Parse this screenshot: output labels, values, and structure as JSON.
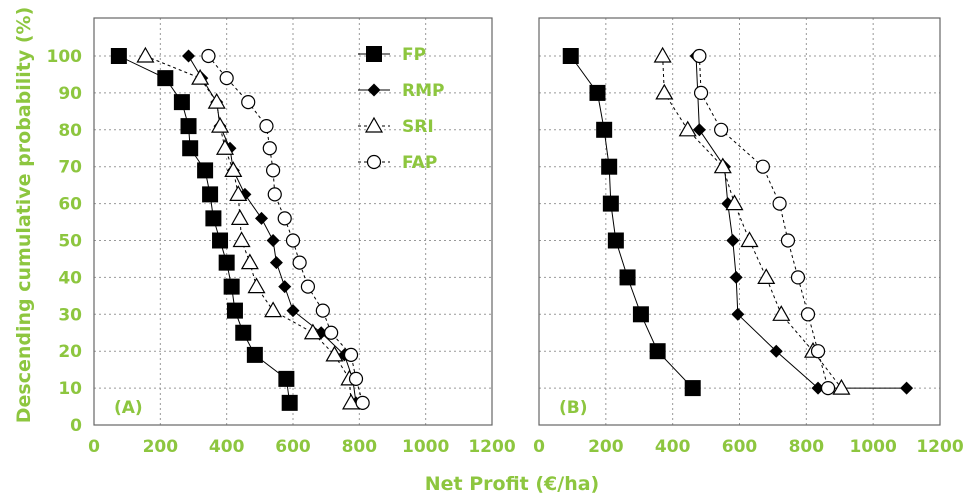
{
  "chart_data": [
    {
      "type": "line",
      "panel_label": "(A)",
      "xlabel": "Net Profit (€/ha)",
      "ylabel": "Descending cumulative probability (%)",
      "xlim": [
        0,
        1200
      ],
      "ylim": [
        0,
        100
      ],
      "xticks": [
        "0",
        "200",
        "400",
        "600",
        "800",
        "1000",
        "1200"
      ],
      "yticks": [
        "0",
        "10",
        "20",
        "30",
        "40",
        "50",
        "60",
        "70",
        "80",
        "90",
        "100"
      ],
      "grid": true,
      "legend_position": "top-right",
      "series": [
        {
          "name": "FP",
          "marker": "filled-square",
          "line": "solid",
          "x": [
            75,
            215,
            265,
            285,
            290,
            335,
            350,
            360,
            380,
            400,
            415,
            425,
            450,
            485,
            580,
            590
          ],
          "y": [
            100,
            94,
            87.5,
            81,
            75,
            69,
            62.5,
            56,
            50,
            44,
            37.5,
            31,
            25,
            19,
            12.5,
            6
          ]
        },
        {
          "name": "RMP",
          "marker": "filled-diamond",
          "line": "solid",
          "x": [
            285,
            325,
            370,
            380,
            410,
            420,
            455,
            505,
            540,
            550,
            575,
            600,
            685,
            755,
            780,
            790
          ],
          "y": [
            100,
            94,
            87.5,
            81,
            75,
            69,
            62.5,
            56,
            50,
            44,
            37.5,
            31,
            25,
            19,
            12.5,
            6
          ]
        },
        {
          "name": "SRI",
          "marker": "open-triangle",
          "line": "dashed",
          "x": [
            155,
            320,
            370,
            380,
            395,
            420,
            435,
            440,
            445,
            470,
            490,
            540,
            660,
            725,
            770,
            775
          ],
          "y": [
            100,
            94,
            87.5,
            81,
            75,
            69,
            62.5,
            56,
            50,
            44,
            37.5,
            31,
            25,
            19,
            12.5,
            6
          ]
        },
        {
          "name": "FAP",
          "marker": "open-circle",
          "line": "dashed",
          "x": [
            345,
            400,
            465,
            520,
            530,
            540,
            545,
            575,
            600,
            620,
            645,
            690,
            715,
            775,
            790,
            810
          ],
          "y": [
            100,
            94,
            87.5,
            81,
            75,
            69,
            62.5,
            56,
            50,
            44,
            37.5,
            31,
            25,
            19,
            12.5,
            6
          ]
        }
      ]
    },
    {
      "type": "line",
      "panel_label": "(B)",
      "xlim": [
        0,
        1200
      ],
      "ylim": [
        0,
        100
      ],
      "xticks": [
        "0",
        "200",
        "400",
        "600",
        "800",
        "1000",
        "1200"
      ],
      "grid": true,
      "series": [
        {
          "name": "FP",
          "marker": "filled-square",
          "line": "solid",
          "x": [
            95,
            175,
            195,
            210,
            215,
            230,
            265,
            305,
            355,
            460
          ],
          "y": [
            100,
            90,
            80,
            70,
            60,
            50,
            40,
            30,
            20,
            10
          ]
        },
        {
          "name": "RMP",
          "marker": "filled-diamond",
          "line": "solid",
          "x": [
            470,
            480,
            555,
            565,
            580,
            590,
            595,
            710,
            835,
            1100
          ],
          "y": [
            100,
            80,
            70,
            60,
            50,
            40,
            30,
            20,
            10,
            10
          ]
        },
        {
          "name": "SRI",
          "marker": "open-triangle",
          "line": "dashed",
          "x": [
            370,
            375,
            445,
            550,
            585,
            630,
            680,
            725,
            820,
            905
          ],
          "y": [
            100,
            90,
            80,
            70,
            60,
            50,
            40,
            30,
            20,
            10
          ]
        },
        {
          "name": "FAP",
          "marker": "open-circle",
          "line": "dashed",
          "x": [
            480,
            485,
            545,
            670,
            720,
            745,
            775,
            805,
            835,
            865
          ],
          "y": [
            100,
            90,
            80,
            70,
            60,
            50,
            40,
            30,
            20,
            10
          ]
        }
      ]
    }
  ],
  "colors": {
    "label_green": "#8dc63f",
    "marker": "#000000",
    "grid": "#999999",
    "frame": "#666666"
  }
}
